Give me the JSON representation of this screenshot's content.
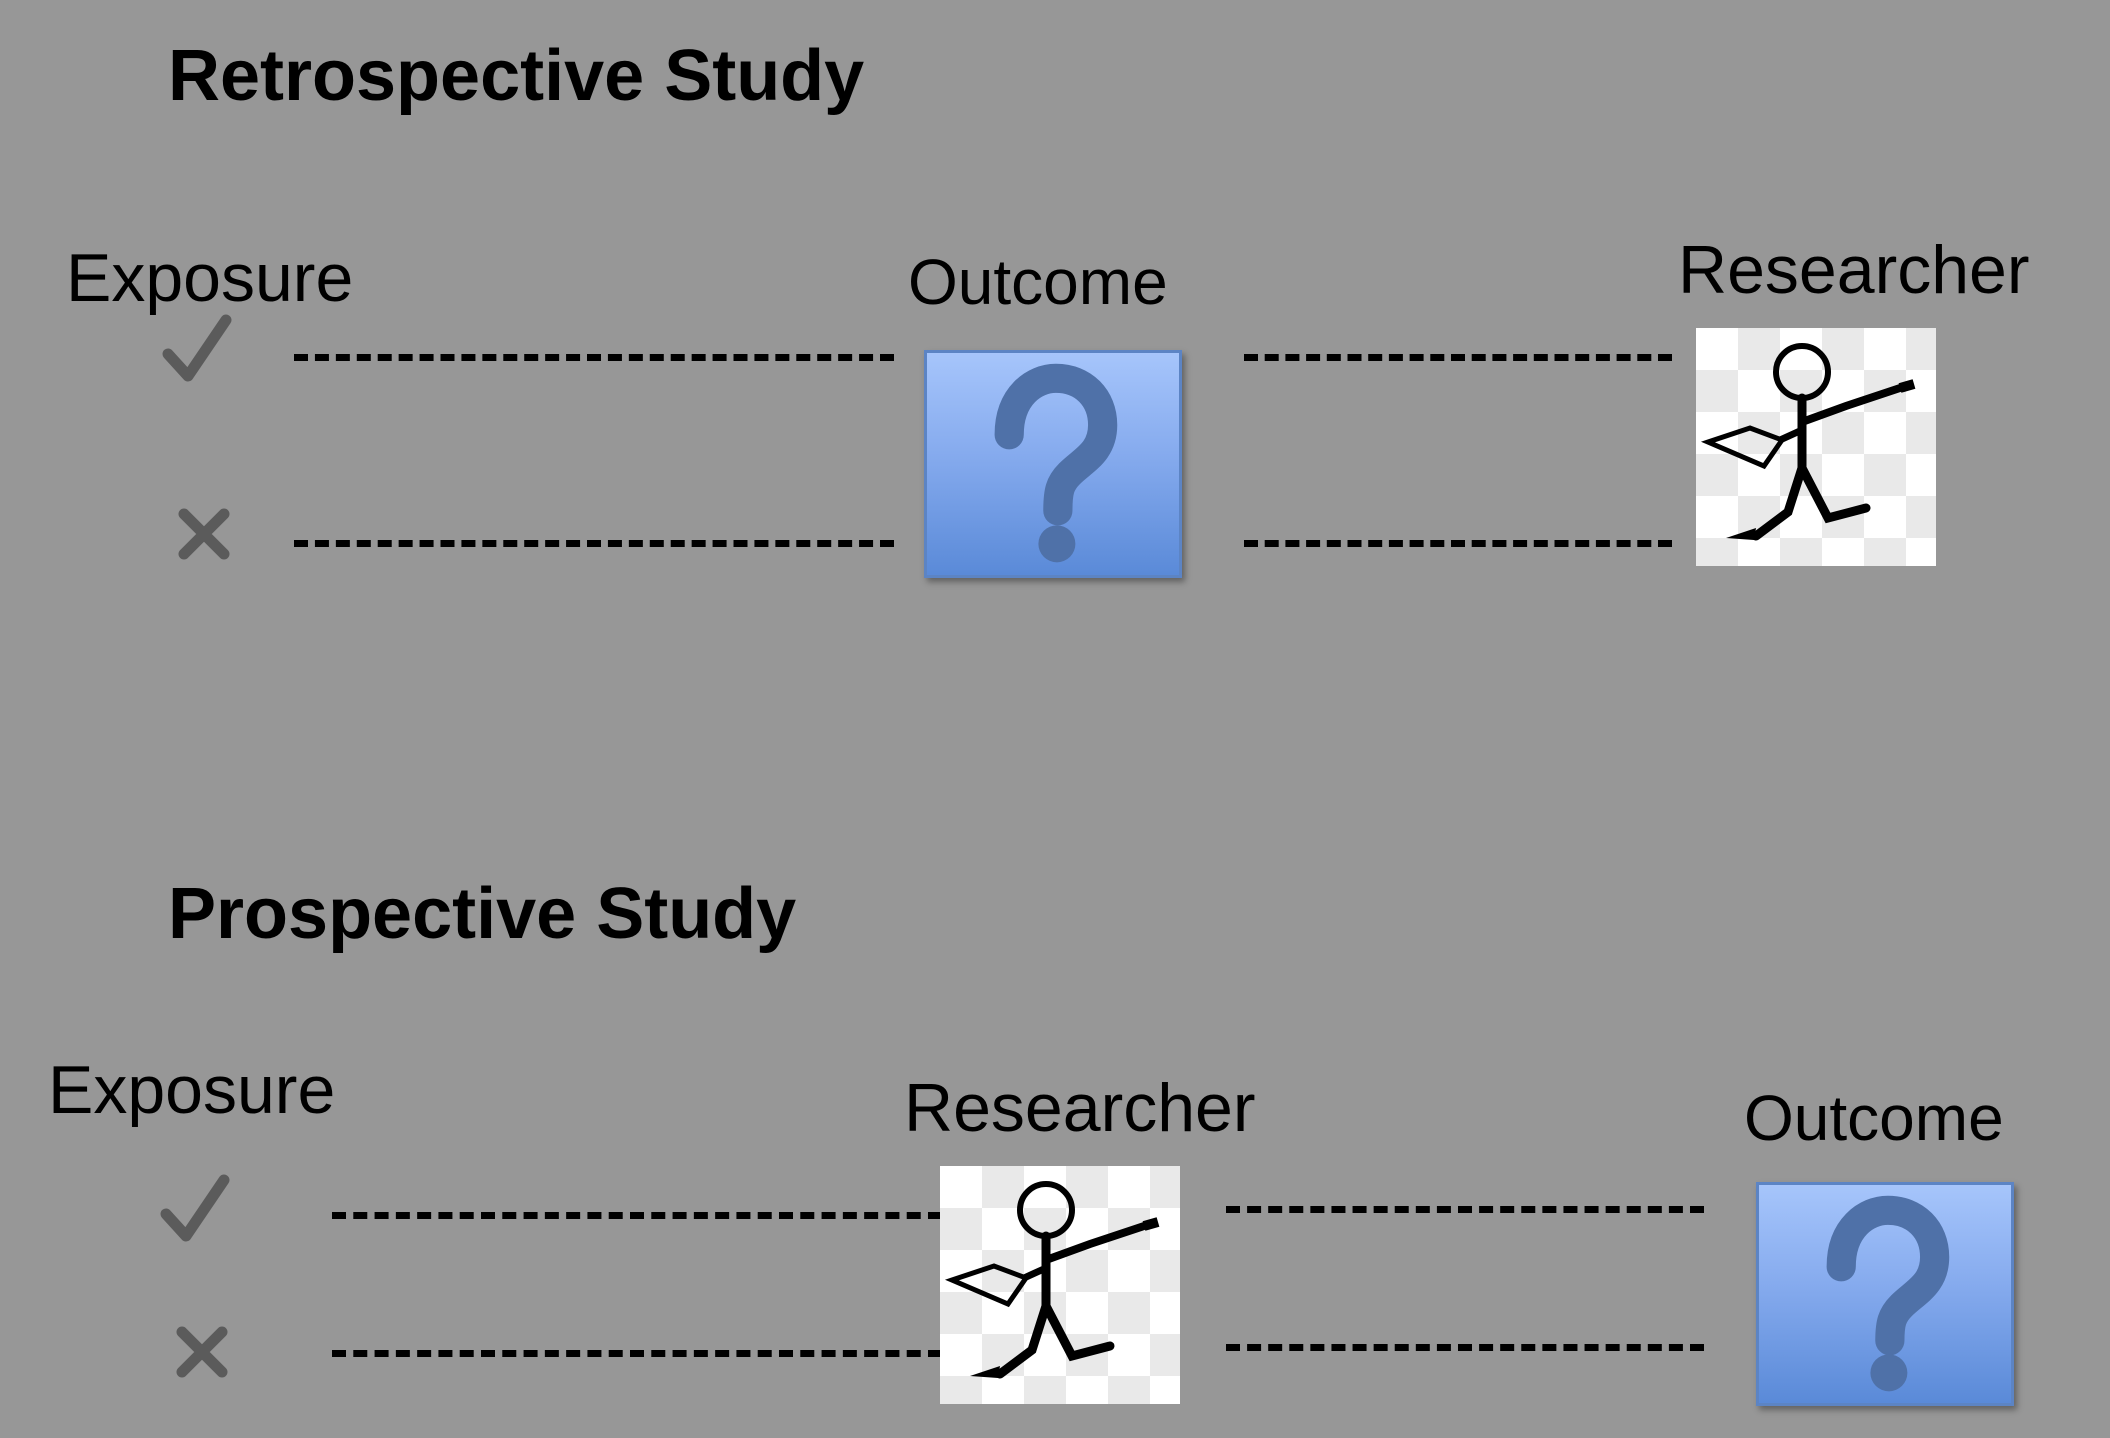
{
  "retrospective": {
    "title": "Retrospective Study",
    "exposure_label": "Exposure",
    "outcome_label": "Outcome",
    "researcher_label": "Researcher",
    "exposed_icon": "check-icon",
    "unexposed_icon": "cross-icon",
    "outcome_icon": "question-mark-icon",
    "researcher_icon": "walking-stick-figure-icon"
  },
  "prospective": {
    "title": "Prospective Study",
    "exposure_label": "Exposure",
    "researcher_label": "Researcher",
    "outcome_label": "Outcome",
    "exposed_icon": "check-icon",
    "unexposed_icon": "cross-icon",
    "outcome_icon": "question-mark-icon",
    "researcher_icon": "walking-stick-figure-icon"
  },
  "colors": {
    "background": "#979797",
    "question_box": "#86abee",
    "mark": "#5b5b5b"
  }
}
